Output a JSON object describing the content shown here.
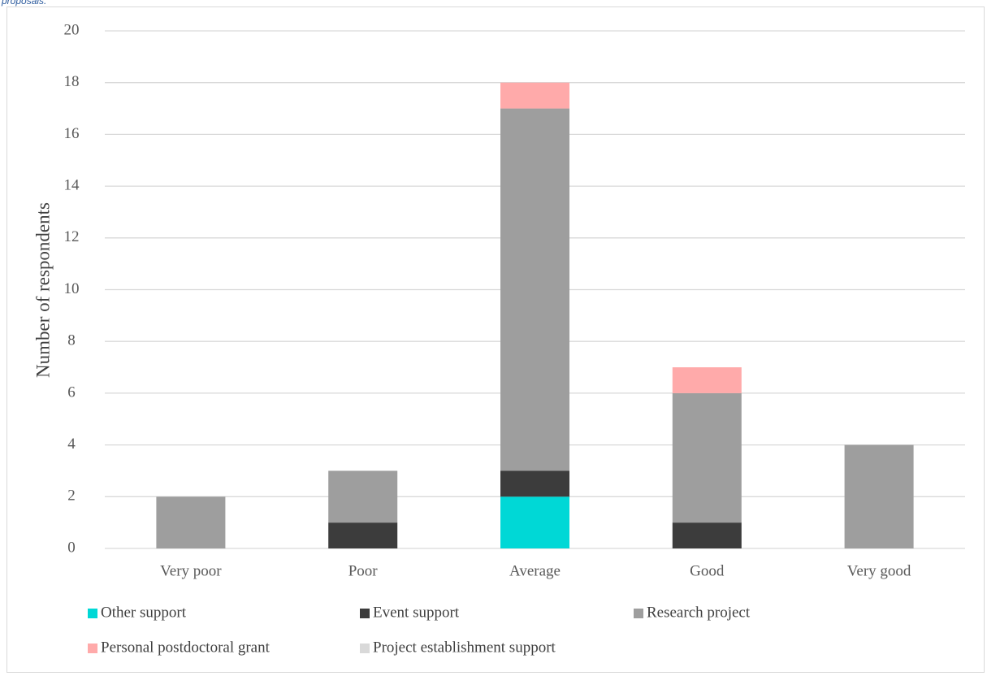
{
  "chart_data": {
    "type": "stacked_bar",
    "note": "proposals.",
    "ylabel": "Number of respondents",
    "categories": [
      "Very poor",
      "Poor",
      "Average",
      "Good",
      "Very good"
    ],
    "series": [
      {
        "name": "Other support",
        "color": "#00d8d6",
        "values": [
          0,
          0,
          2,
          0,
          0
        ]
      },
      {
        "name": "Event support",
        "color": "#3c3c3c",
        "values": [
          0,
          1,
          1,
          1,
          0
        ]
      },
      {
        "name": "Research project",
        "color": "#9e9e9e",
        "values": [
          2,
          2,
          14,
          5,
          4
        ]
      },
      {
        "name": "Personal postdoctoral grant",
        "color": "#ffaaaa",
        "values": [
          0,
          0,
          1,
          1,
          0
        ]
      },
      {
        "name": "Project establishment support",
        "color": "#d9d9d9",
        "values": [
          0,
          0,
          0,
          0,
          0
        ]
      }
    ],
    "ylim": [
      0,
      20
    ],
    "yticks": [
      0,
      2,
      4,
      6,
      8,
      10,
      12,
      14,
      16,
      18,
      20
    ],
    "grid": true
  }
}
